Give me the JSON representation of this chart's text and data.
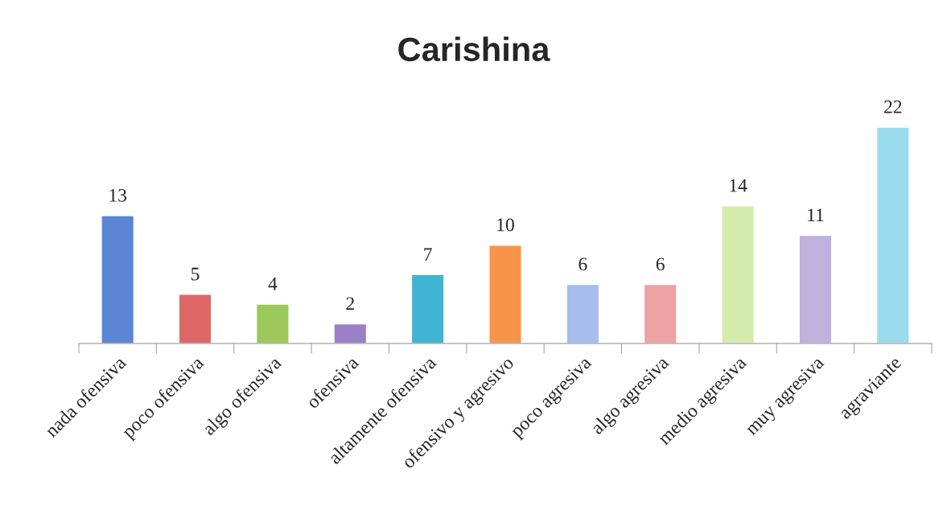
{
  "chart_data": {
    "type": "bar",
    "title": "Carishina",
    "categories": [
      "nada ofensiva",
      "poco ofensiva",
      "algo ofensiva",
      "ofensiva",
      "altamente ofensiva",
      "ofensivo y agresivo",
      "poco agresiva",
      "algo agresiva",
      "medio agresiva",
      "muy agresiva",
      "agraviante"
    ],
    "values": [
      13,
      5,
      4,
      2,
      7,
      10,
      6,
      6,
      14,
      11,
      22
    ],
    "colors": [
      "#5b86d4",
      "#e06767",
      "#9cc85c",
      "#9a80c6",
      "#40b4d2",
      "#f7944a",
      "#a6bdee",
      "#efa2a2",
      "#d4ecab",
      "#bfb0de",
      "#9adcee"
    ],
    "data_labels": true,
    "grid": false,
    "legend": false
  }
}
